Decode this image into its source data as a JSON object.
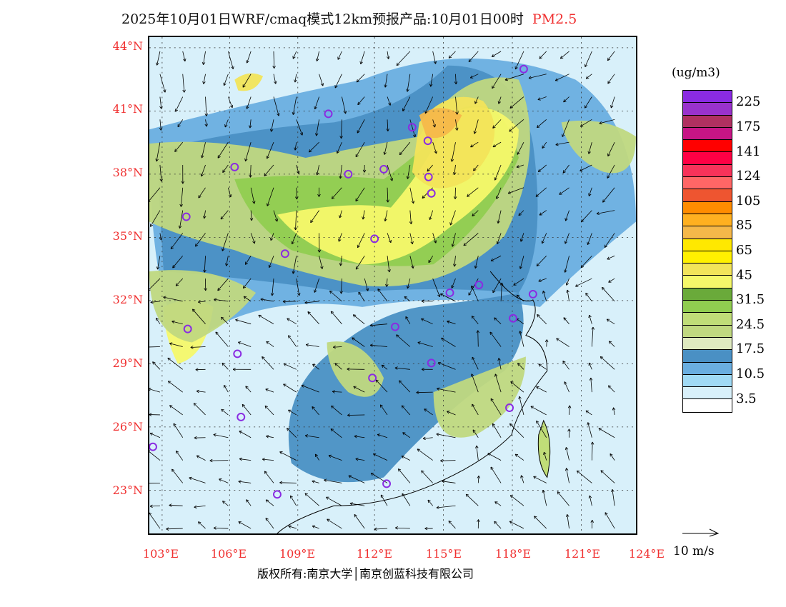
{
  "title": {
    "text": "2025年10月01日WRF/cmaq模式12km预报产品:10月01日00时",
    "variable": "PM2.5"
  },
  "map": {
    "lat_labels": [
      "44°N",
      "41°N",
      "38°N",
      "35°N",
      "32°N",
      "29°N",
      "26°N",
      "23°N"
    ],
    "lon_labels": [
      "103°E",
      "106°E",
      "109°E",
      "112°E",
      "115°E",
      "118°E",
      "121°E",
      "124°E"
    ]
  },
  "colorbar": {
    "unit": "(ug/m3)",
    "colors": [
      "#8a2be2",
      "#9932cc",
      "#b03060",
      "#c71585",
      "#ff0000",
      "#ff0044",
      "#f8325a",
      "#ff6666",
      "#ee5530",
      "#ff8c00",
      "#ffb020",
      "#f5b84a",
      "#ffe800",
      "#fff000",
      "#f2e45a",
      "#f5f86a",
      "#6aaa3a",
      "#90cd50",
      "#c0dd78",
      "#c0d880",
      "#dfeac0",
      "#4a90c4",
      "#6aaee0",
      "#a0daf5",
      "#d8f0fa",
      "#ffffff"
    ],
    "labels": [
      "225",
      "175",
      "141",
      "124",
      "105",
      "85",
      "65",
      "45",
      "31.5",
      "24.5",
      "17.5",
      "10.5",
      "3.5"
    ]
  },
  "wind_reference": "10 m/s",
  "footer": "版权所有:南京大学│南京创蓝科技有限公司"
}
